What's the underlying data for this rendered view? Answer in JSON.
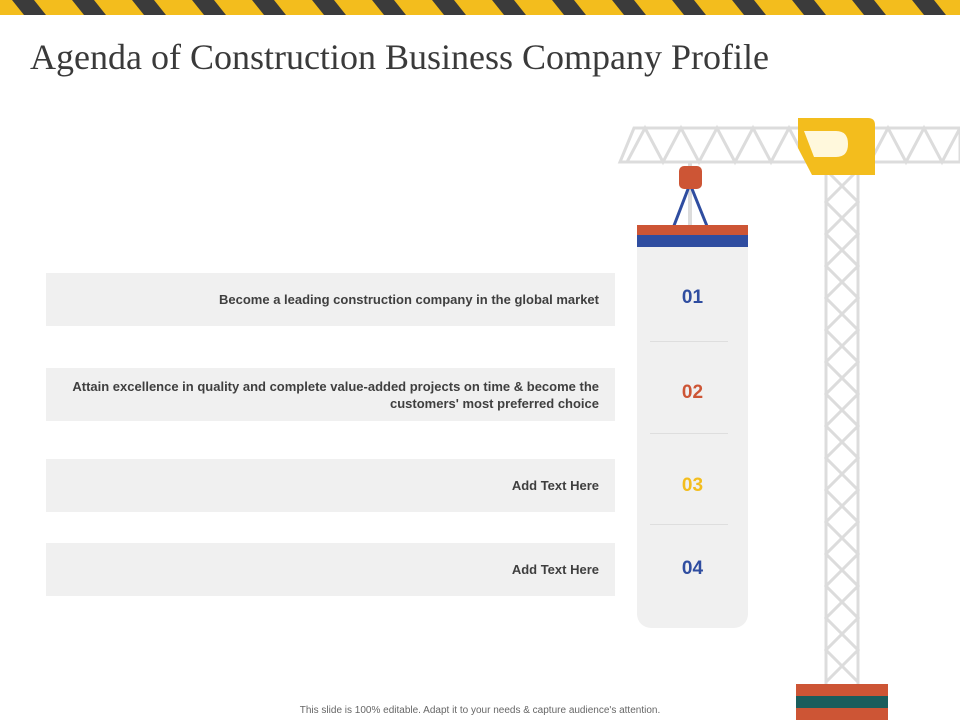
{
  "title": "Agenda of Construction Business Company Profile",
  "agenda": [
    {
      "text": "Become a leading construction  company in the global market",
      "number": "01",
      "color": "#2f4da0"
    },
    {
      "text": "Attain excellence in quality and complete value-added projects on time & become the customers'  most preferred choice",
      "number": "02",
      "color": "#cd5535"
    },
    {
      "text": "Add Text Here",
      "number": "03",
      "color": "#f3bd1d"
    },
    {
      "text": "Add Text Here",
      "number": "04",
      "color": "#2f4da0"
    }
  ],
  "footer": "This slide is 100% editable. Adapt it to your needs & capture audience's attention.",
  "colors": {
    "yellow": "#f3bd1d",
    "dark": "#3b3b3b",
    "red": "#cd5535",
    "blue": "#2f4da0",
    "teal": "#1a5d5c",
    "lattice": "#dcdcdc",
    "panel": "#f0f0f0"
  }
}
